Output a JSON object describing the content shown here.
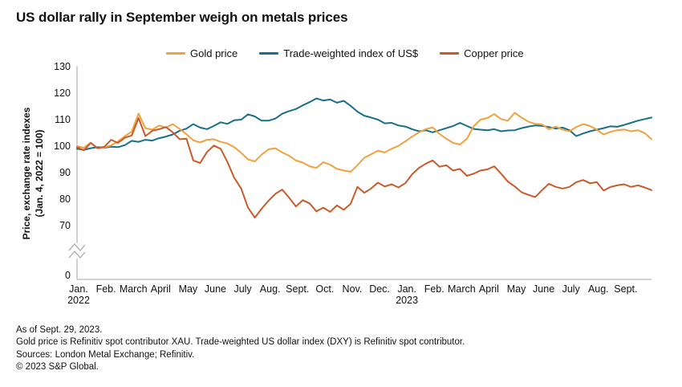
{
  "title": "US dollar rally in September weigh on metals prices",
  "legend": {
    "position": "top",
    "items": [
      {
        "label": "Gold price",
        "color": "#F1A13E"
      },
      {
        "label": "Trade-weighted index of US$",
        "color": "#186F88"
      },
      {
        "label": "Copper price",
        "color": "#CB5A2A"
      }
    ]
  },
  "y_axis": {
    "title_line1": "Price, exchange rate indexes",
    "title_line2": "(Jan. 4, 2022 = 100)",
    "ticks": [
      130,
      120,
      110,
      100,
      90,
      80,
      70
    ],
    "zero_label": "0",
    "has_axis_break": true
  },
  "x_axis": {
    "months": [
      {
        "label": "Jan.",
        "year": "2022"
      },
      {
        "label": "Feb."
      },
      {
        "label": "March"
      },
      {
        "label": "April"
      },
      {
        "label": "May"
      },
      {
        "label": "June"
      },
      {
        "label": "July"
      },
      {
        "label": "Aug."
      },
      {
        "label": "Sept."
      },
      {
        "label": "Oct."
      },
      {
        "label": "Nov."
      },
      {
        "label": "Dec."
      },
      {
        "label": "Jan.",
        "year": "2023"
      },
      {
        "label": "Feb."
      },
      {
        "label": "March"
      },
      {
        "label": "April"
      },
      {
        "label": "May"
      },
      {
        "label": "June"
      },
      {
        "label": "July"
      },
      {
        "label": "Aug."
      },
      {
        "label": "Sept."
      }
    ]
  },
  "footnotes": {
    "lines": [
      "As of Sept. 29, 2023.",
      "Gold price is Refinitiv spot contributor XAU. Trade-weighted US dollar index (DXY) is Refinitiv spot contributor.",
      "Sources: London Metal Exchange; Refinitiv.",
      "© 2023 S&P Global."
    ]
  },
  "chart_data": {
    "type": "line",
    "title": "US dollar rally in September weigh on metals prices",
    "xlabel": "",
    "ylabel": "Price, exchange rate indexes (Jan. 4, 2022 = 100)",
    "x_range": [
      "Jan. 2022",
      "Sept. 29, 2023"
    ],
    "x_sampling": "4 points per month, Jan. 2022 through Sept. 2023, plus final point Sept. 29, 2023",
    "y_ticks": [
      0,
      70,
      80,
      90,
      100,
      110,
      120,
      130
    ],
    "ylim_displayed": [
      70,
      130
    ],
    "axis_break_below": 70,
    "grid": false,
    "legend_position": "top",
    "series": [
      {
        "name": "Gold price",
        "color": "#F1A13E",
        "values": [
          100.0,
          99.4,
          101.3,
          99.2,
          99.5,
          100.3,
          101.8,
          103.8,
          105.5,
          112.3,
          106.8,
          106.2,
          107.8,
          107.0,
          108.3,
          106.5,
          104.5,
          102.2,
          101.4,
          102.4,
          102.6,
          101.6,
          101.0,
          99.6,
          97.5,
          95.0,
          94.2,
          96.8,
          98.8,
          99.2,
          97.6,
          96.4,
          94.6,
          93.8,
          92.4,
          91.8,
          93.9,
          93.0,
          91.4,
          90.8,
          90.3,
          92.8,
          95.6,
          96.9,
          98.3,
          97.6,
          99.0,
          100.1,
          101.8,
          103.6,
          105.2,
          106.4,
          107.1,
          104.6,
          102.8,
          101.2,
          100.6,
          102.8,
          107.5,
          110.0,
          110.6,
          112.1,
          110.2,
          109.6,
          112.6,
          110.8,
          109.2,
          108.4,
          108.2,
          106.4,
          107.4,
          106.2,
          105.6,
          107.2,
          108.3,
          107.6,
          106.2,
          104.4,
          105.4,
          106.0,
          106.3,
          105.6,
          106.0,
          104.9,
          102.6
        ]
      },
      {
        "name": "Trade-weighted index of US$",
        "color": "#186F88",
        "values": [
          99.0,
          98.6,
          99.2,
          99.6,
          99.4,
          99.8,
          99.6,
          100.4,
          102.0,
          101.6,
          102.4,
          102.1,
          103.0,
          103.6,
          104.4,
          105.8,
          106.6,
          108.3,
          107.0,
          106.4,
          107.6,
          109.0,
          108.4,
          109.8,
          110.0,
          112.0,
          111.2,
          109.6,
          109.6,
          110.4,
          112.2,
          113.2,
          114.0,
          115.4,
          116.6,
          118.0,
          117.2,
          117.6,
          116.4,
          117.1,
          115.2,
          113.0,
          111.5,
          110.8,
          110.0,
          108.6,
          108.8,
          107.8,
          107.4,
          106.4,
          105.6,
          106.0,
          105.2,
          106.0,
          106.8,
          107.6,
          108.8,
          107.6,
          106.5,
          106.2,
          106.0,
          106.4,
          105.6,
          105.9,
          106.0,
          106.8,
          107.4,
          107.8,
          107.6,
          107.2,
          106.6,
          107.0,
          106.0,
          103.8,
          104.8,
          105.6,
          106.2,
          106.8,
          107.5,
          107.3,
          108.0,
          108.8,
          109.6,
          110.2,
          110.8
        ]
      },
      {
        "name": "Copper price",
        "color": "#CB5A2A",
        "values": [
          99.6,
          98.4,
          101.2,
          99.2,
          99.8,
          102.4,
          101.2,
          103.2,
          104.0,
          110.6,
          103.8,
          105.8,
          106.4,
          107.2,
          105.2,
          102.6,
          102.8,
          94.6,
          93.6,
          97.8,
          100.2,
          99.0,
          94.0,
          88.0,
          84.0,
          76.8,
          73.0,
          76.4,
          79.4,
          82.0,
          83.6,
          80.6,
          77.2,
          79.6,
          78.4,
          75.4,
          76.8,
          75.2,
          77.6,
          76.0,
          78.2,
          84.6,
          82.4,
          84.0,
          86.2,
          84.8,
          85.6,
          84.4,
          86.0,
          89.4,
          91.8,
          93.4,
          94.6,
          92.2,
          92.8,
          90.8,
          91.4,
          88.8,
          89.6,
          90.8,
          91.2,
          92.4,
          89.6,
          86.6,
          84.8,
          82.6,
          81.6,
          80.8,
          83.4,
          85.8,
          84.6,
          84.0,
          84.6,
          86.4,
          87.2,
          86.0,
          86.4,
          83.2,
          84.6,
          85.2,
          85.6,
          84.6,
          85.2,
          84.4,
          83.4
        ]
      }
    ]
  }
}
